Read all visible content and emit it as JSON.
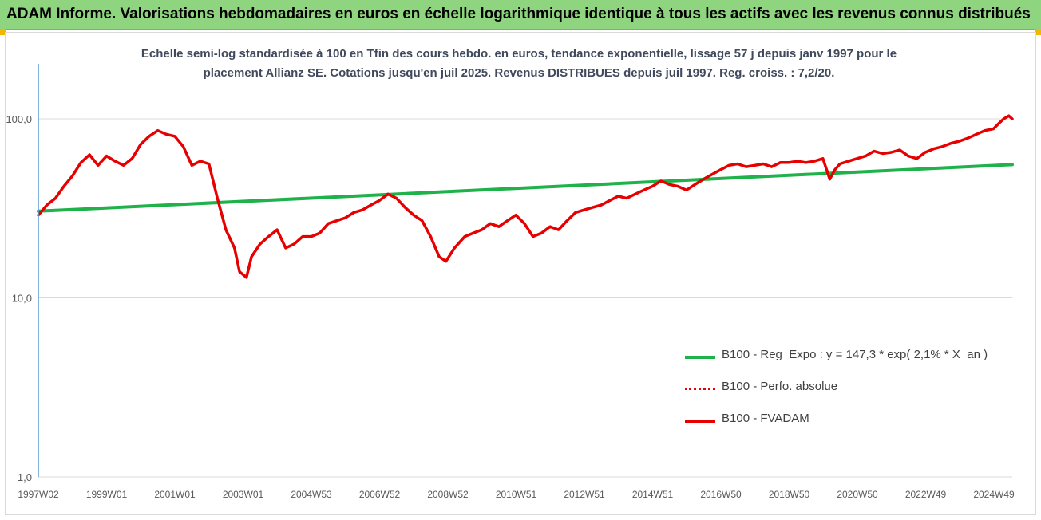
{
  "header": {
    "title": "ADAM Informe. Valorisations hebdomadaires en euros en échelle logarithmique identique à tous les actifs avec les revenus connus distribués"
  },
  "chart_data": {
    "type": "line",
    "subtitle_lines": [
      "Echelle semi-log standardisée à 100 en Tfin des cours hebdo. en euros, tendance exponentielle, lissage 57 j depuis janv 1997 pour le",
      "placement Allianz SE. Cotations jusqu'en juil 2025. Revenus DISTRIBUES depuis juil 1997. Reg. croiss. : 7,2/20."
    ],
    "y_scale": "log",
    "ylim": [
      1,
      200
    ],
    "y_ticks": [
      "1,0",
      "10,0",
      "100,0"
    ],
    "y_tick_values": [
      1,
      10,
      100
    ],
    "x_tick_labels": [
      "1997W02",
      "1999W01",
      "2001W01",
      "2003W01",
      "2004W53",
      "2006W52",
      "2008W52",
      "2010W51",
      "2012W51",
      "2014W51",
      "2016W50",
      "2018W50",
      "2020W50",
      "2022W49",
      "2024W49"
    ],
    "xlim": [
      1997.0,
      2025.55
    ],
    "grid": "horizontal",
    "legend_position": "bottom-right",
    "series": [
      {
        "name": "B100 - Reg_Expo : y = 147,3 * exp( 2,1% *  X_an )",
        "color": "#1fb14a",
        "style": "solid",
        "x": [
          1997.0,
          2025.55
        ],
        "y": [
          30.5,
          55.5
        ]
      },
      {
        "name": "B100 - Perfo. absolue",
        "color": "#e60000",
        "style": "dotted",
        "x": [],
        "y": []
      },
      {
        "name": "B100 - FVADAM",
        "color": "#e60000",
        "style": "solid",
        "x": [
          1997.0,
          1997.25,
          1997.5,
          1997.75,
          1998.0,
          1998.25,
          1998.5,
          1998.75,
          1999.0,
          1999.25,
          1999.5,
          1999.75,
          2000.0,
          2000.25,
          2000.5,
          2000.75,
          2001.0,
          2001.25,
          2001.5,
          2001.75,
          2002.0,
          2002.25,
          2002.5,
          2002.75,
          2002.9,
          2003.1,
          2003.25,
          2003.5,
          2003.75,
          2004.0,
          2004.25,
          2004.5,
          2004.75,
          2005.0,
          2005.25,
          2005.5,
          2005.75,
          2006.0,
          2006.25,
          2006.5,
          2006.75,
          2007.0,
          2007.25,
          2007.5,
          2007.75,
          2008.0,
          2008.25,
          2008.5,
          2008.75,
          2008.95,
          2009.2,
          2009.5,
          2009.75,
          2010.0,
          2010.25,
          2010.5,
          2010.75,
          2011.0,
          2011.25,
          2011.5,
          2011.75,
          2012.0,
          2012.25,
          2012.5,
          2012.75,
          2013.0,
          2013.25,
          2013.5,
          2013.75,
          2014.0,
          2014.25,
          2014.5,
          2014.75,
          2015.0,
          2015.25,
          2015.5,
          2015.75,
          2016.0,
          2016.25,
          2016.5,
          2016.75,
          2017.0,
          2017.25,
          2017.5,
          2017.75,
          2018.0,
          2018.25,
          2018.5,
          2018.75,
          2019.0,
          2019.25,
          2019.5,
          2019.75,
          2020.0,
          2020.2,
          2020.35,
          2020.5,
          2020.75,
          2021.0,
          2021.25,
          2021.5,
          2021.75,
          2022.0,
          2022.25,
          2022.5,
          2022.75,
          2023.0,
          2023.25,
          2023.5,
          2023.75,
          2024.0,
          2024.25,
          2024.5,
          2024.75,
          2025.0,
          2025.15,
          2025.3,
          2025.45,
          2025.55
        ],
        "y": [
          29,
          33,
          36,
          42,
          48,
          57,
          63,
          55,
          62,
          58,
          55,
          60,
          72,
          80,
          86,
          82,
          80,
          70,
          55,
          58,
          56,
          36,
          24,
          19,
          14,
          13,
          17,
          20,
          22,
          24,
          19,
          20,
          22,
          22,
          23,
          26,
          27,
          28,
          30,
          31,
          33,
          35,
          38,
          36,
          32,
          29,
          27,
          22,
          17,
          16,
          19,
          22,
          23,
          24,
          26,
          25,
          27,
          29,
          26,
          22,
          23,
          25,
          24,
          27,
          30,
          31,
          32,
          33,
          35,
          37,
          36,
          38,
          40,
          42,
          45,
          43,
          42,
          40,
          43,
          46,
          49,
          52,
          55,
          56,
          54,
          55,
          56,
          54,
          57,
          57,
          58,
          57,
          58,
          60,
          46,
          52,
          56,
          58,
          60,
          62,
          66,
          64,
          65,
          67,
          62,
          60,
          65,
          68,
          70,
          73,
          75,
          78,
          82,
          86,
          88,
          94,
          100,
          104,
          100
        ]
      }
    ]
  }
}
